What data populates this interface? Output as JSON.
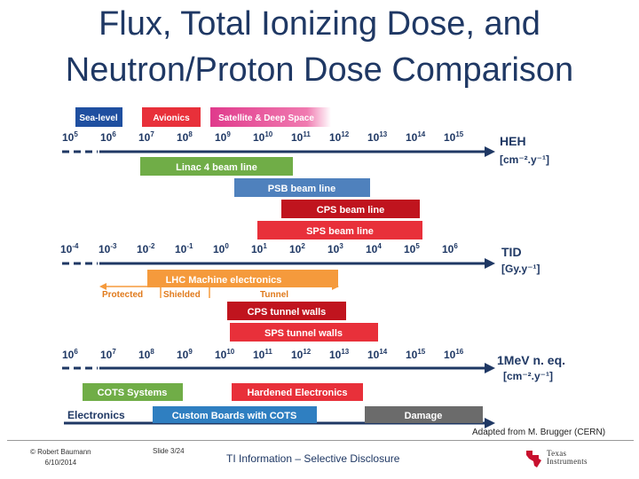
{
  "title": {
    "line1": "Flux, Total Ionizing  Dose, and",
    "line2": "Neutron/Proton Dose Comparison"
  },
  "legend": {
    "sea_level": "Sea-level",
    "avionics": "Avionics",
    "satellite": "Satellite & Deep Space"
  },
  "axes": {
    "heh": {
      "unit_line1": "HEH",
      "unit_line2": "[cm⁻².y⁻¹]",
      "ticks": [
        {
          "base": "10",
          "exp": "5"
        },
        {
          "base": "10",
          "exp": "6"
        },
        {
          "base": "10",
          "exp": "7"
        },
        {
          "base": "10",
          "exp": "8"
        },
        {
          "base": "10",
          "exp": "9"
        },
        {
          "base": "10",
          "exp": "10"
        },
        {
          "base": "10",
          "exp": "11"
        },
        {
          "base": "10",
          "exp": "12"
        },
        {
          "base": "10",
          "exp": "13"
        },
        {
          "base": "10",
          "exp": "14"
        },
        {
          "base": "10",
          "exp": "15"
        }
      ]
    },
    "tid": {
      "unit_line1": "TID",
      "unit_line2": "[Gy.y⁻¹]",
      "ticks": [
        {
          "base": "10",
          "exp": "-4"
        },
        {
          "base": "10",
          "exp": "-3"
        },
        {
          "base": "10",
          "exp": "-2"
        },
        {
          "base": "10",
          "exp": "-1"
        },
        {
          "base": "10",
          "exp": "0"
        },
        {
          "base": "10",
          "exp": "1"
        },
        {
          "base": "10",
          "exp": "2"
        },
        {
          "base": "10",
          "exp": "3"
        },
        {
          "base": "10",
          "exp": "4"
        },
        {
          "base": "10",
          "exp": "5"
        },
        {
          "base": "10",
          "exp": "6"
        }
      ]
    },
    "neq": {
      "unit_line1": "1MeV n. eq.",
      "unit_line2": "[cm⁻².y⁻¹]",
      "ticks": [
        {
          "base": "10",
          "exp": "6"
        },
        {
          "base": "10",
          "exp": "7"
        },
        {
          "base": "10",
          "exp": "8"
        },
        {
          "base": "10",
          "exp": "9"
        },
        {
          "base": "10",
          "exp": "10"
        },
        {
          "base": "10",
          "exp": "11"
        },
        {
          "base": "10",
          "exp": "12"
        },
        {
          "base": "10",
          "exp": "13"
        },
        {
          "base": "10",
          "exp": "14"
        },
        {
          "base": "10",
          "exp": "15"
        },
        {
          "base": "10",
          "exp": "16"
        }
      ]
    }
  },
  "bars": {
    "linac4": "Linac 4 beam line",
    "psb": "PSB beam line",
    "cps": "CPS beam line",
    "sps": "SPS beam line",
    "lhc": "LHC Machine electronics",
    "protected": "Protected",
    "shielded": "Shielded",
    "tunnel": "Tunnel",
    "cps_walls": "CPS tunnel walls",
    "sps_walls": "SPS tunnel walls",
    "cots_systems": "COTS Systems",
    "hardened": "Hardened Electronics",
    "electronics": "Electronics",
    "custom_boards": "Custom Boards with COTS",
    "damage": "Damage"
  },
  "colors": {
    "title": "#1f3864",
    "axis": "#1f3864",
    "linac_green": "#70ad47",
    "psb_blue": "#4f81bd",
    "red": "#e8303a",
    "dark_red": "#c0141e",
    "orange": "#f59a3c",
    "custom_blue": "#2f7fc1",
    "damage_gray": "#6b6b6b"
  },
  "credit": "Adapted from M. Brugger (CERN)",
  "footer": {
    "copyright_line1": "© Robert Baumann",
    "copyright_line2": "6/10/2014",
    "slide": "Slide  3/24",
    "center": "TI Information – Selective Disclosure",
    "logo_line1": "Texas",
    "logo_line2": "Instruments"
  }
}
